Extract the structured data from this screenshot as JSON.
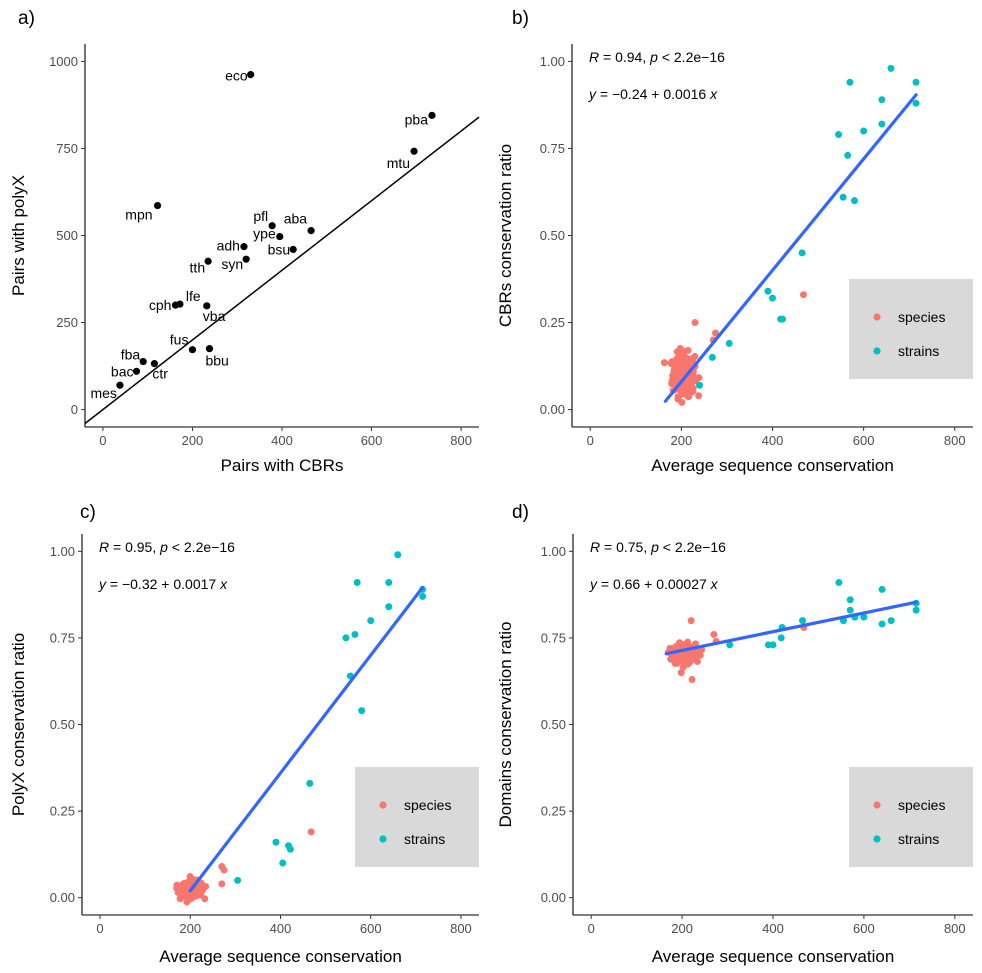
{
  "colors": {
    "species": "#F8766D",
    "strains": "#00BFC4",
    "fit_line": "#3366FF",
    "legend_bg": "#D9D9D9",
    "point_black": "#000000"
  },
  "chart_data": [
    {
      "id": "a",
      "letter": "a)",
      "type": "scatter",
      "xlabel": "Pairs with CBRs",
      "ylabel": "Pairs with polyX",
      "xlim": [
        -40,
        840
      ],
      "ylim": [
        -50,
        1050
      ],
      "xticks": [
        0,
        200,
        400,
        600,
        800
      ],
      "xtick_labels": [
        "0",
        "200",
        "400",
        "600",
        "800"
      ],
      "yticks": [
        0,
        250,
        500,
        750,
        1000
      ],
      "ytick_labels": [
        "0",
        "250",
        "500",
        "750",
        "1000"
      ],
      "reference_line": {
        "slope": 1,
        "intercept": 0
      },
      "points": [
        {
          "label": "eco",
          "x": 330,
          "y": 962
        },
        {
          "label": "pba",
          "x": 735,
          "y": 845
        },
        {
          "label": "mtu",
          "x": 695,
          "y": 742
        },
        {
          "label": "mpn",
          "x": 122,
          "y": 586
        },
        {
          "label": "pfl",
          "x": 378,
          "y": 528
        },
        {
          "label": "aba",
          "x": 465,
          "y": 514
        },
        {
          "label": "ype",
          "x": 395,
          "y": 497
        },
        {
          "label": "adh",
          "x": 315,
          "y": 468
        },
        {
          "label": "bsu",
          "x": 425,
          "y": 460
        },
        {
          "label": "syn",
          "x": 320,
          "y": 432
        },
        {
          "label": "tth",
          "x": 235,
          "y": 426
        },
        {
          "label": "lfe",
          "x": 172,
          "y": 303
        },
        {
          "label": "cph",
          "x": 162,
          "y": 300
        },
        {
          "label": "vba",
          "x": 232,
          "y": 298
        },
        {
          "label": "fus",
          "x": 200,
          "y": 172
        },
        {
          "label": "bbu",
          "x": 238,
          "y": 175
        },
        {
          "label": "fba",
          "x": 90,
          "y": 138
        },
        {
          "label": "ctr",
          "x": 115,
          "y": 132
        },
        {
          "label": "bac",
          "x": 75,
          "y": 110
        },
        {
          "label": "mes",
          "x": 38,
          "y": 70
        }
      ]
    },
    {
      "id": "b",
      "letter": "b)",
      "type": "scatter",
      "xlabel": "Average sequence conservation",
      "ylabel": "CBRs conservation ratio",
      "xlim": [
        -40,
        840
      ],
      "ylim": [
        -0.05,
        1.05
      ],
      "xticks": [
        0,
        200,
        400,
        600,
        800
      ],
      "xtick_labels": [
        "0",
        "200",
        "400",
        "600",
        "800"
      ],
      "yticks": [
        0,
        0.25,
        0.5,
        0.75,
        1.0
      ],
      "ytick_labels": [
        "0.00",
        "0.25",
        "0.50",
        "0.75",
        "1.00"
      ],
      "stats": {
        "r_value": "0.94",
        "p_value": "2.2e−16",
        "intercept": "−0.24",
        "slope": "0.0016"
      },
      "fit": {
        "x_range": [
          165,
          715
        ],
        "intercept": -0.24,
        "slope": 0.0016
      },
      "legend": {
        "position": "right",
        "entries": [
          "species",
          "strains"
        ]
      },
      "species_cluster": {
        "x_center": 205,
        "x_spread": 22,
        "y_center": 0.1,
        "y_spread": 0.055,
        "n": 240
      },
      "species_extra": [
        [
          270,
          0.2
        ],
        [
          275,
          0.22
        ],
        [
          230,
          0.25
        ],
        [
          468,
          0.33
        ]
      ],
      "strains": [
        [
          570,
          0.94
        ],
        [
          660,
          0.98
        ],
        [
          715,
          0.94
        ],
        [
          715,
          0.88
        ],
        [
          640,
          0.89
        ],
        [
          640,
          0.82
        ],
        [
          600,
          0.8
        ],
        [
          545,
          0.79
        ],
        [
          565,
          0.73
        ],
        [
          555,
          0.61
        ],
        [
          580,
          0.6
        ],
        [
          465,
          0.45
        ],
        [
          390,
          0.34
        ],
        [
          400,
          0.32
        ],
        [
          418,
          0.26
        ],
        [
          422,
          0.26
        ],
        [
          305,
          0.19
        ],
        [
          240,
          0.07
        ],
        [
          268,
          0.15
        ]
      ]
    },
    {
      "id": "c",
      "letter": "c)",
      "type": "scatter",
      "xlabel": "Average sequence conservation",
      "ylabel": "PolyX conservation ratio",
      "xlim": [
        -40,
        840
      ],
      "ylim": [
        -0.05,
        1.05
      ],
      "xticks": [
        0,
        200,
        400,
        600,
        800
      ],
      "xtick_labels": [
        "0",
        "200",
        "400",
        "600",
        "800"
      ],
      "yticks": [
        0,
        0.25,
        0.5,
        0.75,
        1.0
      ],
      "ytick_labels": [
        "0.00",
        "0.25",
        "0.50",
        "0.75",
        "1.00"
      ],
      "stats": {
        "r_value": "0.95",
        "p_value": "2.2e−16",
        "intercept": "−0.32",
        "slope": "0.0017"
      },
      "fit": {
        "x_range": [
          200,
          715
        ],
        "intercept": -0.32,
        "slope": 0.0017
      },
      "legend": {
        "position": "right",
        "entries": [
          "species",
          "strains"
        ]
      },
      "species_cluster": {
        "x_center": 205,
        "x_spread": 22,
        "y_center": 0.025,
        "y_spread": 0.02,
        "n": 240
      },
      "species_extra": [
        [
          270,
          0.09
        ],
        [
          275,
          0.08
        ],
        [
          270,
          0.04
        ],
        [
          468,
          0.19
        ]
      ],
      "strains": [
        [
          660,
          0.99
        ],
        [
          570,
          0.91
        ],
        [
          640,
          0.91
        ],
        [
          715,
          0.89
        ],
        [
          715,
          0.87
        ],
        [
          640,
          0.84
        ],
        [
          600,
          0.8
        ],
        [
          565,
          0.76
        ],
        [
          545,
          0.75
        ],
        [
          555,
          0.64
        ],
        [
          580,
          0.54
        ],
        [
          465,
          0.33
        ],
        [
          390,
          0.16
        ],
        [
          418,
          0.15
        ],
        [
          422,
          0.14
        ],
        [
          405,
          0.1
        ],
        [
          305,
          0.05
        ]
      ]
    },
    {
      "id": "d",
      "letter": "d)",
      "type": "scatter",
      "xlabel": "Average sequence conservation",
      "ylabel": "Domains conservation ratio",
      "xlim": [
        -40,
        840
      ],
      "ylim": [
        -0.05,
        1.05
      ],
      "xticks": [
        0,
        200,
        400,
        600,
        800
      ],
      "xtick_labels": [
        "0",
        "200",
        "400",
        "600",
        "800"
      ],
      "yticks": [
        0,
        0.25,
        0.5,
        0.75,
        1.0
      ],
      "ytick_labels": [
        "0.00",
        "0.25",
        "0.50",
        "0.75",
        "1.00"
      ],
      "stats": {
        "r_value": "0.75",
        "p_value": "2.2e−16",
        "intercept": "0.66",
        "slope": "0.00027"
      },
      "fit": {
        "x_range": [
          165,
          715
        ],
        "intercept": 0.66,
        "slope": 0.00027
      },
      "legend": {
        "position": "right",
        "entries": [
          "species",
          "strains"
        ]
      },
      "species_cluster": {
        "x_center": 205,
        "x_spread": 22,
        "y_center": 0.705,
        "y_spread": 0.025,
        "n": 240
      },
      "species_extra": [
        [
          270,
          0.76
        ],
        [
          275,
          0.74
        ],
        [
          220,
          0.8
        ],
        [
          222,
          0.63
        ],
        [
          240,
          0.7
        ],
        [
          468,
          0.78
        ]
      ],
      "strains": [
        [
          545,
          0.91
        ],
        [
          640,
          0.89
        ],
        [
          570,
          0.86
        ],
        [
          570,
          0.83
        ],
        [
          600,
          0.81
        ],
        [
          715,
          0.85
        ],
        [
          715,
          0.83
        ],
        [
          640,
          0.79
        ],
        [
          660,
          0.8
        ],
        [
          555,
          0.8
        ],
        [
          580,
          0.81
        ],
        [
          465,
          0.8
        ],
        [
          420,
          0.78
        ],
        [
          418,
          0.75
        ],
        [
          400,
          0.73
        ],
        [
          390,
          0.73
        ],
        [
          305,
          0.73
        ]
      ]
    }
  ]
}
